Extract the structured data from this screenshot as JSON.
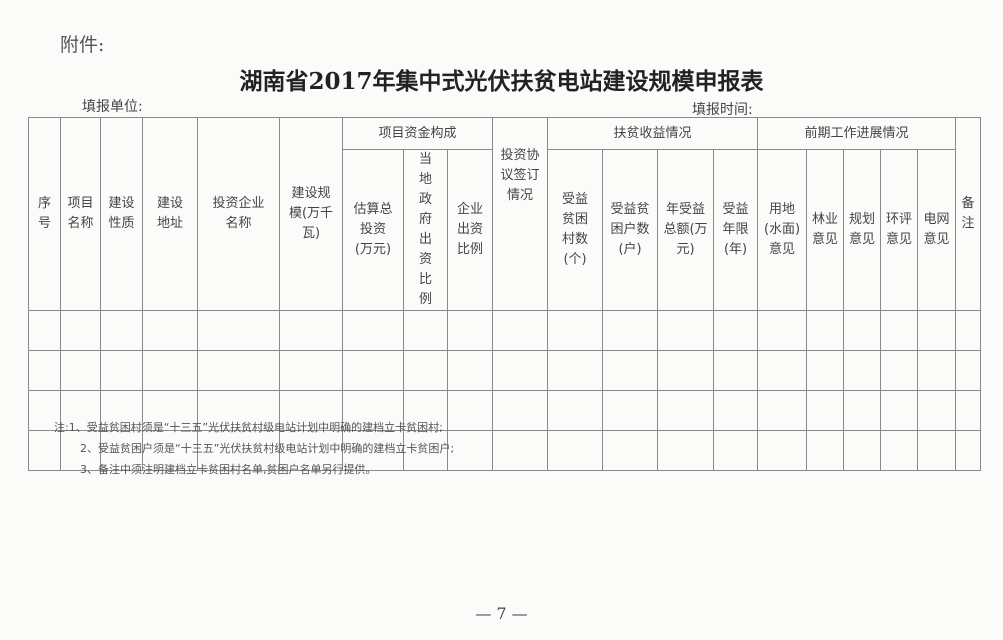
{
  "attachment_label": "附件:",
  "title": "湖南省2017年集中式光伏扶贫电站建设规模申报表",
  "fill_unit_label": "填报单位:",
  "fill_time_label": "填报时间:",
  "table": {
    "groups": {
      "funding": "项目资金构成",
      "poverty": "扶贫收益情况",
      "progress": "前期工作进展情况"
    },
    "columns": {
      "seq": "序号",
      "name": "项目名称",
      "nature": "建设性质",
      "address": "建设地址",
      "investor": "投资企业名称",
      "scale": "建设规模(万千瓦)",
      "total_investment": "估算总投资(万元)",
      "gov_ratio": "当地政府出资比例",
      "corp_ratio": "企业出资比例",
      "agreement": "投资协议签订情况",
      "villages": "受益贫困村数(个)",
      "households": "受益贫困户数(户)",
      "annual_income": "年受益总额(万元)",
      "years": "受益年限(年)",
      "land": "用地(水面)意见",
      "forestry": "林业意见",
      "planning": "规划意见",
      "environment": "环评意见",
      "grid": "电网意见",
      "remarks": "备注"
    },
    "empty_rows": 4
  },
  "notes": [
    "注:1、受益贫困村须是“十三五”光伏扶贫村级电站计划中明确的建档立卡贫困村;",
    "2、受益贫困户须是“十三五”光伏扶贫村级电站计划中明确的建档立卡贫困户;",
    "3、备注中须注明建档立卡贫困村名单,贫困户名单另行提供。"
  ],
  "page_number": "— 7 —"
}
